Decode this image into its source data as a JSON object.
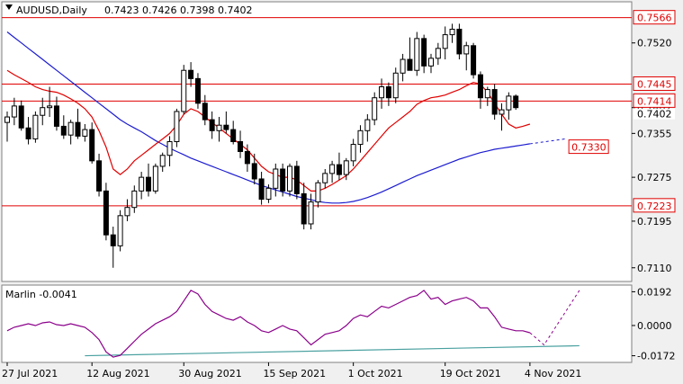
{
  "header": {
    "symbol": "AUDUSD,Daily",
    "ohlc": "0.7423 0.7426 0.7398 0.7402"
  },
  "colors": {
    "background": "#ffffff",
    "frame": "#f0f0f0",
    "level_line": "#e00000",
    "fast_ma": "#e00000",
    "slow_ma": "#1c1cd0",
    "oscillator": "#8b008b",
    "signal": "#4aa0a0",
    "candle_outline": "#000000",
    "candle_bull": "#ffffff",
    "candle_bear": "#000000"
  },
  "chart_data": [
    {
      "type": "candlestick",
      "title": "AUDUSD,Daily",
      "ylim": [
        0.7085,
        0.7595
      ],
      "y_ticks": [
        0.752,
        0.7402,
        0.7355,
        0.7275,
        0.7195,
        0.711
      ],
      "x_labels": [
        {
          "text": "27 Jul 2021",
          "index": 0
        },
        {
          "text": "12 Aug 2021",
          "index": 12
        },
        {
          "text": "30 Aug 2021",
          "index": 25
        },
        {
          "text": "15 Sep 2021",
          "index": 37
        },
        {
          "text": "1 Oct 2021",
          "index": 49
        },
        {
          "text": "19 Oct 2021",
          "index": 62
        },
        {
          "text": "4 Nov 2021",
          "index": 74
        }
      ],
      "last_price_tag": "0.7402",
      "levels": [
        {
          "value": 0.7566,
          "label": "0.7566"
        },
        {
          "value": 0.7445,
          "label": "0.7445"
        },
        {
          "value": 0.7414,
          "label": "0.7414"
        },
        {
          "value": 0.7223,
          "label": "0.7223"
        }
      ],
      "target": {
        "value": 0.733,
        "label": "0.7330"
      },
      "candles": [
        [
          0.7375,
          0.7395,
          0.734,
          0.7385
        ],
        [
          0.7385,
          0.742,
          0.737,
          0.7405
        ],
        [
          0.7405,
          0.7415,
          0.736,
          0.7365
        ],
        [
          0.7365,
          0.7385,
          0.7335,
          0.7345
        ],
        [
          0.7345,
          0.7395,
          0.7338,
          0.7388
        ],
        [
          0.7388,
          0.742,
          0.737,
          0.7402
        ],
        [
          0.7402,
          0.744,
          0.7385,
          0.7405
        ],
        [
          0.7405,
          0.7422,
          0.736,
          0.7368
        ],
        [
          0.7368,
          0.7388,
          0.7345,
          0.7352
        ],
        [
          0.7352,
          0.738,
          0.7335,
          0.7375
        ],
        [
          0.7375,
          0.74,
          0.7345,
          0.735
        ],
        [
          0.735,
          0.7372,
          0.734,
          0.7362
        ],
        [
          0.7362,
          0.7375,
          0.73,
          0.7305
        ],
        [
          0.7305,
          0.7318,
          0.724,
          0.725
        ],
        [
          0.725,
          0.7265,
          0.716,
          0.717
        ],
        [
          0.717,
          0.7185,
          0.711,
          0.715
        ],
        [
          0.715,
          0.7215,
          0.714,
          0.7205
        ],
        [
          0.7205,
          0.7235,
          0.7195,
          0.722
        ],
        [
          0.722,
          0.726,
          0.721,
          0.725
        ],
        [
          0.725,
          0.7285,
          0.7235,
          0.7275
        ],
        [
          0.7275,
          0.73,
          0.724,
          0.725
        ],
        [
          0.725,
          0.73,
          0.7245,
          0.7295
        ],
        [
          0.7295,
          0.732,
          0.7285,
          0.7315
        ],
        [
          0.7315,
          0.735,
          0.7295,
          0.734
        ],
        [
          0.734,
          0.74,
          0.733,
          0.7395
        ],
        [
          0.7395,
          0.748,
          0.739,
          0.747
        ],
        [
          0.747,
          0.7485,
          0.744,
          0.7455
        ],
        [
          0.7455,
          0.7465,
          0.74,
          0.741
        ],
        [
          0.741,
          0.7425,
          0.737,
          0.738
        ],
        [
          0.738,
          0.7395,
          0.7345,
          0.736
        ],
        [
          0.736,
          0.7385,
          0.734,
          0.737
        ],
        [
          0.737,
          0.7395,
          0.7355,
          0.7362
        ],
        [
          0.7362,
          0.7378,
          0.7335,
          0.734
        ],
        [
          0.734,
          0.736,
          0.731,
          0.7322
        ],
        [
          0.7322,
          0.7335,
          0.7285,
          0.73
        ],
        [
          0.73,
          0.7318,
          0.7262,
          0.7272
        ],
        [
          0.7272,
          0.7285,
          0.7225,
          0.7235
        ],
        [
          0.7235,
          0.7262,
          0.7228,
          0.7255
        ],
        [
          0.7255,
          0.73,
          0.724,
          0.729
        ],
        [
          0.729,
          0.73,
          0.724,
          0.725
        ],
        [
          0.725,
          0.73,
          0.724,
          0.7295
        ],
        [
          0.7295,
          0.7305,
          0.7235,
          0.7245
        ],
        [
          0.7245,
          0.7265,
          0.718,
          0.719
        ],
        [
          0.719,
          0.7245,
          0.718,
          0.723
        ],
        [
          0.723,
          0.727,
          0.722,
          0.7265
        ],
        [
          0.7265,
          0.729,
          0.7255,
          0.7282
        ],
        [
          0.7282,
          0.7305,
          0.7265,
          0.7298
        ],
        [
          0.7298,
          0.732,
          0.727,
          0.728
        ],
        [
          0.728,
          0.731,
          0.727,
          0.7305
        ],
        [
          0.7305,
          0.7345,
          0.7295,
          0.7335
        ],
        [
          0.7335,
          0.737,
          0.732,
          0.736
        ],
        [
          0.736,
          0.739,
          0.734,
          0.738
        ],
        [
          0.738,
          0.743,
          0.737,
          0.742
        ],
        [
          0.742,
          0.7455,
          0.74,
          0.744
        ],
        [
          0.744,
          0.7448,
          0.7405,
          0.742
        ],
        [
          0.742,
          0.7475,
          0.741,
          0.7465
        ],
        [
          0.7465,
          0.75,
          0.745,
          0.749
        ],
        [
          0.749,
          0.753,
          0.747,
          0.747
        ],
        [
          0.747,
          0.754,
          0.746,
          0.7528
        ],
        [
          0.7528,
          0.7535,
          0.7465,
          0.7478
        ],
        [
          0.7478,
          0.75,
          0.7465,
          0.7492
        ],
        [
          0.7492,
          0.752,
          0.748,
          0.751
        ],
        [
          0.751,
          0.755,
          0.749,
          0.7535
        ],
        [
          0.7535,
          0.7555,
          0.752,
          0.7545
        ],
        [
          0.7545,
          0.7555,
          0.749,
          0.75
        ],
        [
          0.75,
          0.7522,
          0.747,
          0.7515
        ],
        [
          0.7515,
          0.752,
          0.7455,
          0.7462
        ],
        [
          0.7462,
          0.7468,
          0.74,
          0.742
        ],
        [
          0.742,
          0.744,
          0.7405,
          0.7435
        ],
        [
          0.7435,
          0.7445,
          0.738,
          0.739
        ],
        [
          0.739,
          0.741,
          0.736,
          0.7398
        ],
        [
          0.7398,
          0.743,
          0.738,
          0.7423
        ],
        [
          0.7423,
          0.7426,
          0.7398,
          0.7402
        ]
      ],
      "fast_ma": [
        0.747,
        0.7462,
        0.7455,
        0.7448,
        0.744,
        0.7435,
        0.7432,
        0.743,
        0.7425,
        0.7418,
        0.741,
        0.74,
        0.7385,
        0.736,
        0.733,
        0.729,
        0.728,
        0.729,
        0.7305,
        0.7315,
        0.7325,
        0.7335,
        0.7345,
        0.7355,
        0.737,
        0.739,
        0.74,
        0.7395,
        0.7385,
        0.7375,
        0.7365,
        0.7355,
        0.7345,
        0.7335,
        0.7325,
        0.731,
        0.7295,
        0.7285,
        0.728,
        0.7275,
        0.7275,
        0.727,
        0.726,
        0.725,
        0.725,
        0.7255,
        0.7262,
        0.727,
        0.7278,
        0.729,
        0.7305,
        0.732,
        0.7335,
        0.735,
        0.7365,
        0.7375,
        0.7385,
        0.7395,
        0.7408,
        0.7415,
        0.742,
        0.7422,
        0.7425,
        0.743,
        0.7435,
        0.7442,
        0.7448,
        0.7445,
        0.743,
        0.741,
        0.739,
        0.7372,
        0.7365,
        0.7368,
        0.7372
      ],
      "slow_ma": [
        0.754,
        0.753,
        0.752,
        0.751,
        0.75,
        0.749,
        0.748,
        0.747,
        0.746,
        0.745,
        0.744,
        0.743,
        0.742,
        0.741,
        0.74,
        0.739,
        0.738,
        0.7372,
        0.7365,
        0.7358,
        0.735,
        0.7342,
        0.7335,
        0.7328,
        0.7322,
        0.7316,
        0.731,
        0.7305,
        0.73,
        0.7295,
        0.729,
        0.7285,
        0.728,
        0.7275,
        0.727,
        0.7265,
        0.726,
        0.7256,
        0.7252,
        0.7248,
        0.7244,
        0.724,
        0.7237,
        0.7234,
        0.7231,
        0.7229,
        0.7228,
        0.7228,
        0.7229,
        0.7231,
        0.7234,
        0.7238,
        0.7243,
        0.7248,
        0.7254,
        0.726,
        0.7266,
        0.7272,
        0.7278,
        0.7283,
        0.7288,
        0.7293,
        0.7298,
        0.7303,
        0.7308,
        0.7312,
        0.7316,
        0.732,
        0.7323,
        0.7326,
        0.7328,
        0.733,
        0.7332,
        0.7334,
        0.7336
      ],
      "slow_ma_projection": [
        [
          74,
          0.7336
        ],
        [
          79,
          0.7345
        ]
      ]
    },
    {
      "type": "line",
      "title": "Marlin -0.0041",
      "ylim": [
        -0.021,
        0.023
      ],
      "y_ticks": [
        0.0192,
        0.0,
        -0.0172
      ],
      "oscillator": [
        -0.003,
        -0.001,
        0.0,
        0.001,
        0.0,
        0.0015,
        0.002,
        0.0005,
        0.0,
        0.001,
        0.0,
        -0.001,
        -0.004,
        -0.008,
        -0.015,
        -0.018,
        -0.017,
        -0.013,
        -0.009,
        -0.005,
        -0.002,
        0.001,
        0.003,
        0.005,
        0.008,
        0.014,
        0.02,
        0.018,
        0.012,
        0.008,
        0.006,
        0.004,
        0.003,
        0.005,
        0.002,
        0.0,
        -0.003,
        -0.004,
        -0.002,
        0.0,
        -0.002,
        -0.003,
        -0.007,
        -0.011,
        -0.008,
        -0.005,
        -0.004,
        -0.003,
        0.0,
        0.004,
        0.006,
        0.005,
        0.008,
        0.011,
        0.01,
        0.012,
        0.014,
        0.016,
        0.017,
        0.02,
        0.015,
        0.016,
        0.012,
        0.014,
        0.015,
        0.016,
        0.014,
        0.01,
        0.01,
        0.005,
        -0.001,
        -0.002,
        -0.003,
        -0.003,
        -0.0041
      ],
      "oscillator_projection": [
        [
          74,
          -0.0041
        ],
        [
          76,
          -0.011
        ],
        [
          81,
          0.02
        ]
      ],
      "signal": [
        [
          11,
          -0.0172
        ],
        [
          81,
          -0.0115
        ]
      ]
    }
  ]
}
